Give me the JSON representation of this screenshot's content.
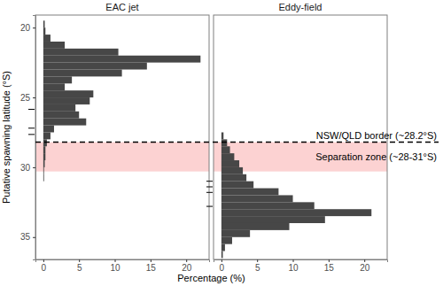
{
  "chart_data": {
    "type": "histogram",
    "orientation": "horizontal",
    "xlabel": "Percentage (%)",
    "ylabel": "Putative spawning latitude (°S)",
    "bins": [
      19.5,
      20,
      20.5,
      21,
      21.5,
      22,
      22.5,
      23,
      23.5,
      24,
      24.5,
      25,
      25.5,
      26,
      26.5,
      27,
      27.5,
      28,
      28.5,
      29,
      29.5,
      30,
      30.5,
      31,
      31.5,
      32,
      32.5,
      33,
      33.5,
      34,
      34.5,
      35,
      35.5,
      36,
      36.5
    ],
    "series": [
      {
        "name": "EAC jet",
        "color": "#474747",
        "values": [
          0.2,
          0.3,
          1,
          3,
          10.5,
          22,
          14.5,
          11,
          4,
          3,
          7,
          6.5,
          4.5,
          5,
          6,
          1.5,
          1,
          0.5,
          0.3,
          0.3,
          0.2,
          0.1,
          0.1,
          0,
          0,
          0,
          0,
          0,
          0,
          0,
          0,
          0,
          0,
          0
        ],
        "rug": [
          25.85,
          27.2,
          27.65
        ]
      },
      {
        "name": "Eddy-field",
        "color": "#474747",
        "values": [
          0,
          0,
          0,
          0,
          0,
          0,
          0,
          0,
          0,
          0,
          0,
          0,
          0,
          0,
          0,
          0,
          0.3,
          0.8,
          1.2,
          1.8,
          2.5,
          3,
          3.5,
          4.5,
          8,
          10,
          13,
          21,
          14.5,
          9.5,
          4,
          1.5,
          0.5,
          0.2
        ],
        "rug": [
          31.0,
          31.4,
          31.8,
          32.8
        ]
      }
    ],
    "xlim": [
      -1.1,
      23.2
    ],
    "xticks": [
      0,
      5,
      10,
      15,
      20
    ],
    "ylim": [
      19.1,
      36.6
    ],
    "yticks": [
      20,
      25,
      30,
      35
    ],
    "grid": false,
    "annotations": [
      {
        "text": "NSW/QLD border (~28.2°S)",
        "y": 28.2,
        "line_style": "dashed"
      },
      {
        "text": "Separation zone (~28-31°S)",
        "y_range": [
          28.2,
          30.3
        ],
        "color": "#fcd2d2"
      }
    ]
  }
}
